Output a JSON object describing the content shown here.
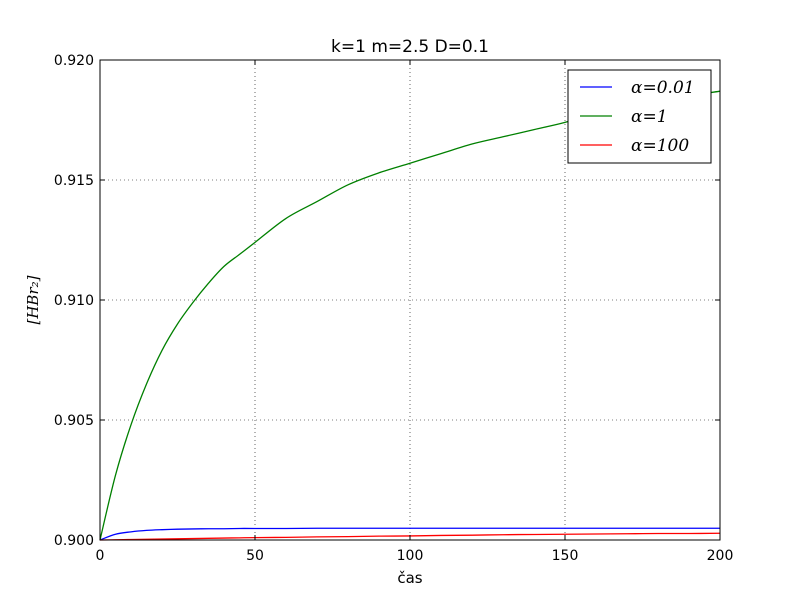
{
  "chart_data": {
    "type": "line",
    "title": "k=1 m=2.5 D=0.1",
    "xlabel": "čas",
    "ylabel": "[HBr₂]",
    "xlim": [
      0,
      200
    ],
    "ylim": [
      0.9,
      0.92
    ],
    "xticks": [
      0,
      50,
      100,
      150,
      200
    ],
    "yticks": [
      0.9,
      0.905,
      0.91,
      0.915,
      0.92
    ],
    "xtick_labels": [
      "0",
      "50",
      "100",
      "150",
      "200"
    ],
    "ytick_labels": [
      "0.900",
      "0.905",
      "0.910",
      "0.915",
      "0.920"
    ],
    "grid": true,
    "legend_position": "top-right",
    "x": [
      0,
      5,
      10,
      15,
      20,
      25,
      30,
      35,
      40,
      45,
      50,
      60,
      70,
      80,
      90,
      100,
      110,
      120,
      130,
      140,
      150,
      160,
      170,
      180,
      190,
      200
    ],
    "series": [
      {
        "name": "α=0.01",
        "color": "#0000ff",
        "values": [
          0.9,
          0.90024,
          0.90034,
          0.9004,
          0.90043,
          0.90045,
          0.90046,
          0.90047,
          0.90047,
          0.90048,
          0.90048,
          0.90048,
          0.90049,
          0.90049,
          0.90049,
          0.90049,
          0.90049,
          0.90049,
          0.90049,
          0.90049,
          0.90049,
          0.90049,
          0.90049,
          0.90049,
          0.90049,
          0.90049
        ]
      },
      {
        "name": "α=1",
        "color": "#008000",
        "values": [
          0.9,
          0.9027,
          0.9048,
          0.9065,
          0.9079,
          0.909,
          0.9099,
          0.9107,
          0.9114,
          0.9119,
          0.9124,
          0.9134,
          0.9141,
          0.9148,
          0.9153,
          0.9157,
          0.9161,
          0.9165,
          0.9168,
          0.9171,
          0.9174,
          0.9178,
          0.918,
          0.9182,
          0.9185,
          0.9187
        ]
      },
      {
        "name": "α=100",
        "color": "#ff0000",
        "values": [
          0.9,
          0.90001,
          0.90002,
          0.90003,
          0.90004,
          0.90005,
          0.90006,
          0.90007,
          0.90008,
          0.90009,
          0.9001,
          0.90011,
          0.90013,
          0.90014,
          0.90016,
          0.90017,
          0.90019,
          0.9002,
          0.90022,
          0.90023,
          0.90024,
          0.90025,
          0.90026,
          0.90027,
          0.90027,
          0.90028
        ]
      }
    ]
  }
}
